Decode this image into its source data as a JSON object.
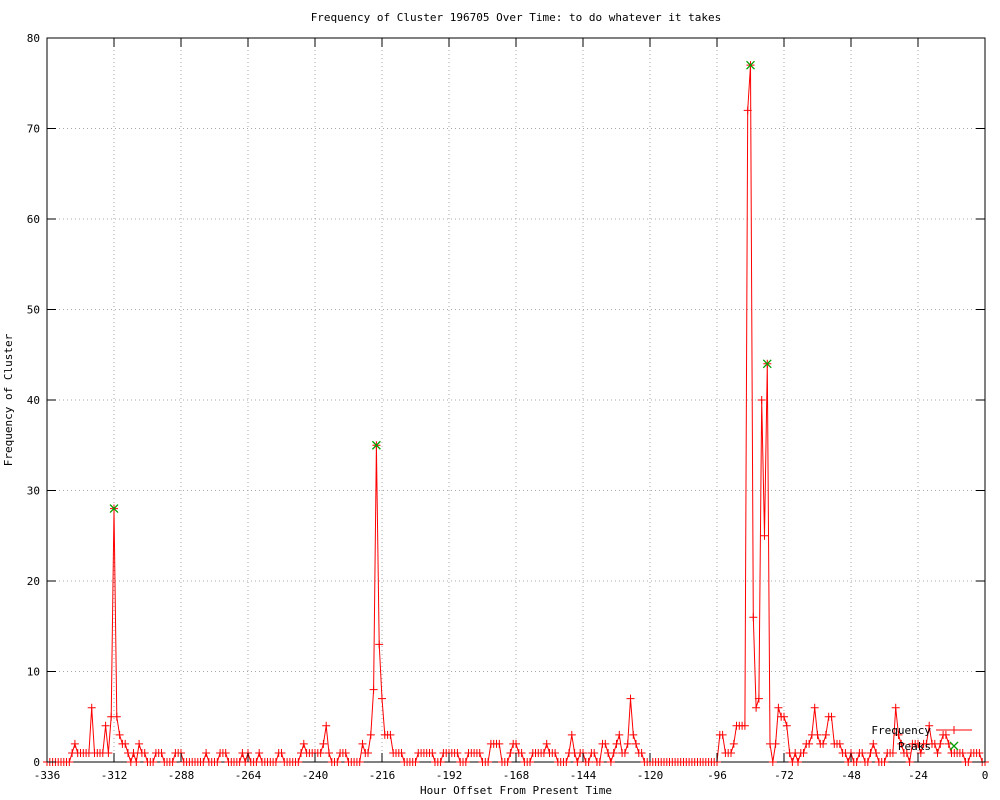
{
  "chart_data": {
    "type": "line",
    "title": "Frequency of Cluster 196705 Over Time: to do whatever it takes",
    "xlabel": "Hour Offset From Present Time",
    "ylabel": "Frequency of Cluster",
    "xlim": [
      -336,
      0
    ],
    "ylim": [
      0,
      80
    ],
    "xticks": [
      -336,
      -312,
      -288,
      -264,
      -240,
      -216,
      -192,
      -168,
      -144,
      -120,
      -96,
      -72,
      -48,
      -24,
      0
    ],
    "yticks": [
      0,
      10,
      20,
      30,
      40,
      50,
      60,
      70,
      80
    ],
    "grid": true,
    "grid_color": "#a8a8a8",
    "axis_color": "#000000",
    "legend_position": "bottom-right",
    "x_start": -336,
    "x_step": 1,
    "series": [
      {
        "name": "Frequency",
        "color": "#ff0000",
        "marker": "plus",
        "values": [
          0,
          0,
          0,
          0,
          0,
          0,
          0,
          0,
          0,
          1,
          2,
          1,
          1,
          1,
          1,
          1,
          6,
          1,
          1,
          1,
          1,
          4,
          1,
          5,
          28,
          5,
          3,
          2,
          2,
          1,
          0,
          1,
          0,
          2,
          1,
          1,
          0,
          0,
          0,
          1,
          1,
          1,
          0,
          0,
          0,
          0,
          1,
          1,
          1,
          0,
          0,
          0,
          0,
          0,
          0,
          0,
          0,
          1,
          0,
          0,
          0,
          0,
          1,
          1,
          1,
          0,
          0,
          0,
          0,
          0,
          1,
          0,
          1,
          0,
          0,
          0,
          1,
          0,
          0,
          0,
          0,
          0,
          0,
          1,
          1,
          0,
          0,
          0,
          0,
          0,
          0,
          1,
          2,
          1,
          1,
          1,
          1,
          1,
          1,
          2,
          4,
          1,
          0,
          0,
          0,
          1,
          1,
          1,
          0,
          0,
          0,
          0,
          0,
          2,
          1,
          1,
          3,
          8,
          35,
          13,
          7,
          3,
          3,
          3,
          1,
          1,
          1,
          1,
          0,
          0,
          0,
          0,
          0,
          1,
          1,
          1,
          1,
          1,
          1,
          0,
          0,
          0,
          1,
          1,
          1,
          1,
          1,
          1,
          0,
          0,
          0,
          1,
          1,
          1,
          1,
          1,
          0,
          0,
          0,
          2,
          2,
          2,
          2,
          0,
          0,
          0,
          1,
          2,
          2,
          1,
          1,
          0,
          0,
          0,
          1,
          1,
          1,
          1,
          1,
          2,
          1,
          1,
          1,
          0,
          0,
          0,
          0,
          1,
          3,
          1,
          0,
          1,
          1,
          0,
          0,
          1,
          1,
          0,
          0,
          2,
          2,
          1,
          0,
          1,
          2,
          3,
          1,
          1,
          2,
          7,
          3,
          2,
          1,
          1,
          0,
          0,
          0,
          0,
          0,
          0,
          0,
          0,
          0,
          0,
          0,
          0,
          0,
          0,
          0,
          0,
          0,
          0,
          0,
          0,
          0,
          0,
          0,
          0,
          0,
          0,
          0,
          3,
          3,
          1,
          1,
          1,
          2,
          4,
          4,
          4,
          4,
          72,
          77,
          16,
          6,
          7,
          40,
          25,
          44,
          2,
          0,
          2,
          6,
          5,
          5,
          4,
          1,
          0,
          1,
          0,
          1,
          1,
          2,
          2,
          3,
          6,
          3,
          2,
          2,
          3,
          5,
          5,
          2,
          2,
          2,
          1,
          1,
          0,
          1,
          0,
          0,
          1,
          1,
          0,
          0,
          1,
          2,
          1,
          0,
          0,
          0,
          1,
          1,
          1,
          6,
          3,
          2,
          1,
          1,
          0,
          2,
          2,
          2,
          1,
          2,
          2,
          4,
          2,
          2,
          1,
          2,
          3,
          3,
          2,
          1,
          1,
          1,
          1,
          1,
          0,
          0,
          1,
          1,
          1,
          1,
          0,
          0
        ]
      },
      {
        "name": "Peaks",
        "color": "#00a000",
        "marker": "cross",
        "points": [
          [
            -312,
            28
          ],
          [
            -218,
            35
          ],
          [
            -84,
            77
          ],
          [
            -78,
            44
          ]
        ]
      }
    ]
  }
}
